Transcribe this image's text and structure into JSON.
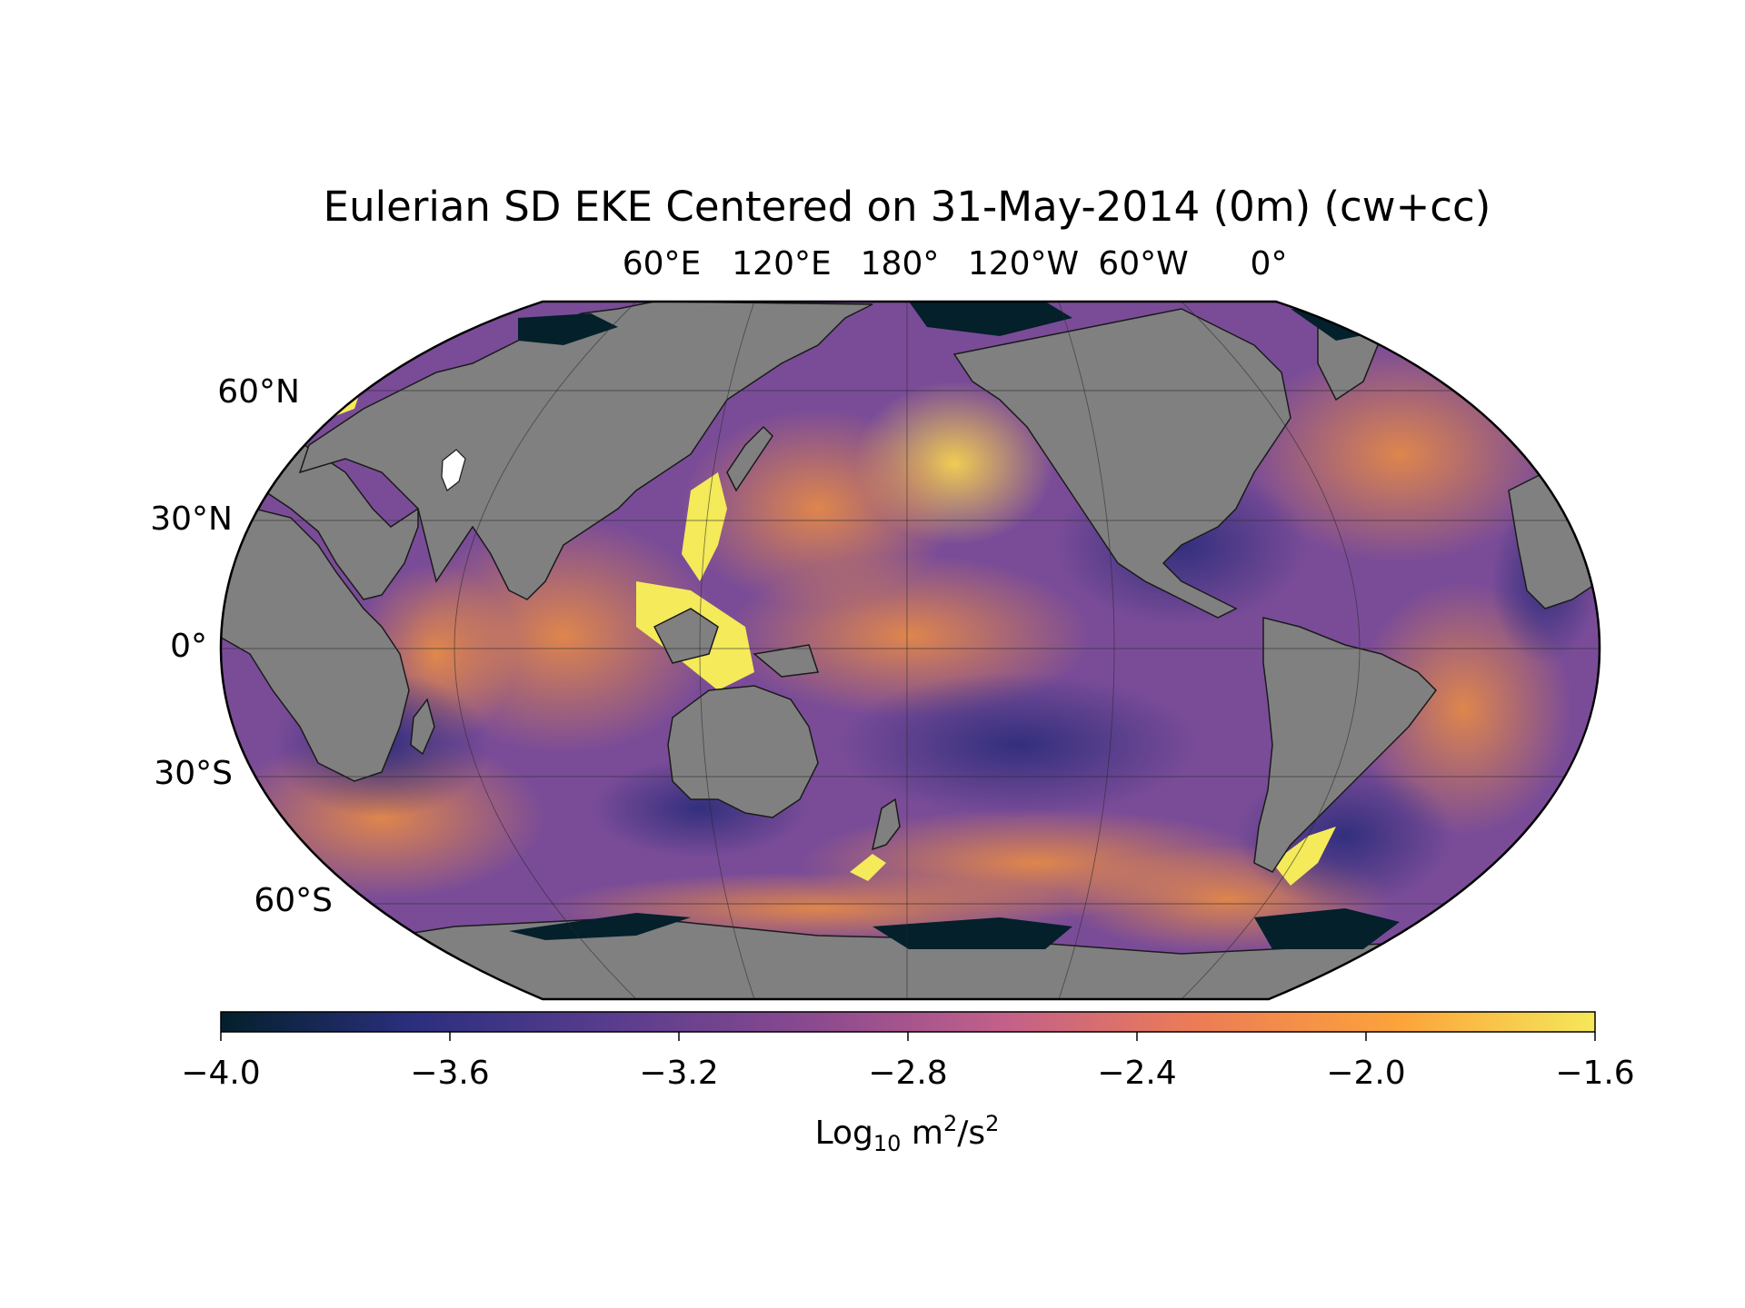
{
  "title": "Eulerian SD EKE Centered on 31-May-2014 (0m) (cw+cc)",
  "lon_labels": [
    "60°E",
    "120°E",
    "180°",
    "120°W",
    "60°W",
    "0°"
  ],
  "lat_labels": [
    "60°N",
    "30°N",
    "0°",
    "30°S",
    "60°S"
  ],
  "colorbar": {
    "ticks": [
      "−4.0",
      "−3.6",
      "−3.2",
      "−2.8",
      "−2.4",
      "−2.0",
      "−1.6"
    ],
    "range": [
      -4.0,
      -1.6
    ],
    "label_base": "Log",
    "label_sub": "10",
    "label_unit1": " m",
    "label_sup1": "2",
    "label_unit2": "/s",
    "label_sup2": "2",
    "colormap": [
      "#03202b",
      "#2b2f7e",
      "#5b3d8e",
      "#8a4a8f",
      "#c2608a",
      "#ec7c56",
      "#fca43a",
      "#f5e85a"
    ]
  },
  "colors": {
    "land": "#808080",
    "ice": "#03202b",
    "ocean_mid": "#7e4e9a",
    "ocean_high": "#f2a24a",
    "ocean_low": "#3e3588"
  }
}
